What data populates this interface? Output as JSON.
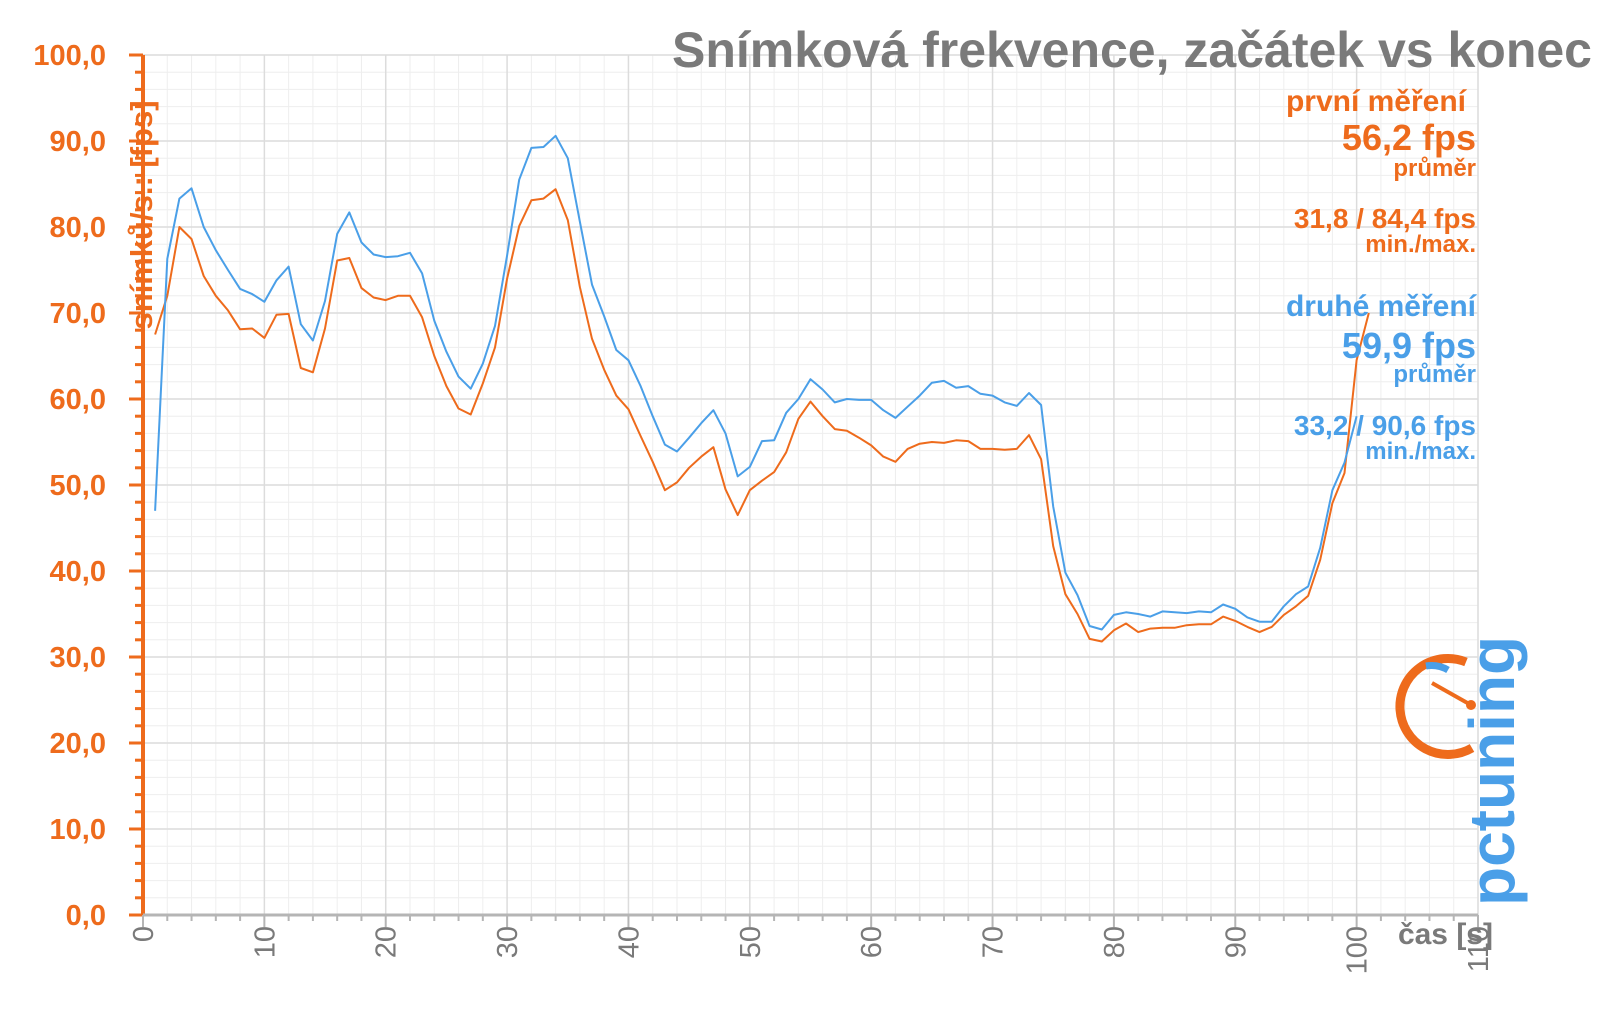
{
  "colors": {
    "series1": "#ee6b1c",
    "series2": "#4a9fe8",
    "axis": "#ee6b1c",
    "title": "#7a7a7a",
    "grid": "#dcdcdc",
    "grid_minor": "#eeeeee"
  },
  "chart_data": {
    "type": "line",
    "title": "Snímková frekvence, začátek vs konec",
    "ylabel": "snímků/s.: [fps]",
    "xlabel": "čas [s]",
    "xlim": [
      0,
      110
    ],
    "ylim": [
      0,
      100
    ],
    "x_ticks": [
      "0",
      "10",
      "20",
      "30",
      "40",
      "50",
      "60",
      "70",
      "80",
      "90",
      "100",
      "110"
    ],
    "y_ticks": [
      "0,0",
      "10,0",
      "20,0",
      "30,0",
      "40,0",
      "50,0",
      "60,0",
      "70,0",
      "80,0",
      "90,0",
      "100,0"
    ],
    "grid": true,
    "legend_position": "right",
    "series": [
      {
        "name": "první měření",
        "x": [
          1,
          2,
          3,
          4,
          5,
          6,
          7,
          8,
          9,
          10,
          11,
          12,
          13,
          14,
          15,
          16,
          17,
          18,
          19,
          20,
          21,
          22,
          23,
          24,
          25,
          26,
          27,
          28,
          29,
          30,
          31,
          32,
          33,
          34,
          35,
          36,
          37,
          38,
          39,
          40,
          41,
          42,
          43,
          44,
          45,
          46,
          47,
          48,
          49,
          50,
          51,
          52,
          53,
          54,
          55,
          56,
          57,
          58,
          59,
          60,
          61,
          62,
          63,
          64,
          65,
          66,
          67,
          68,
          69,
          70,
          71,
          72,
          73,
          74,
          75,
          76,
          77,
          78,
          79,
          80,
          81,
          82,
          83,
          84,
          85,
          86,
          87,
          88,
          89,
          90,
          91,
          92,
          93,
          94,
          95,
          96,
          97,
          98,
          99,
          100,
          101
        ],
        "values": [
          67.5,
          72,
          80,
          78.6,
          74.3,
          72,
          70.3,
          68.1,
          68.2,
          67.1,
          69.8,
          69.9,
          63.6,
          63.1,
          68.2,
          76.1,
          76.4,
          72.9,
          71.8,
          71.5,
          72,
          72,
          69.5,
          65,
          61.5,
          58.9,
          58.2,
          61.8,
          66,
          74,
          80.1,
          83.1,
          83.3,
          84.4,
          80.8,
          73,
          67,
          63.4,
          60.4,
          58.8,
          55.7,
          52.7,
          49.4,
          50.3,
          52,
          53.3,
          54.4,
          49.5,
          46.5,
          49.4,
          50.5,
          51.5,
          53.8,
          57.7,
          59.7,
          58,
          56.5,
          56.3,
          55.5,
          54.6,
          53.3,
          52.7,
          54.2,
          54.8,
          55,
          54.9,
          55.2,
          55.1,
          54.2,
          54.2,
          54.1,
          54.2,
          55.8,
          53,
          42.9,
          37.3,
          35,
          32.1,
          31.8,
          33.1,
          33.9,
          32.9,
          33.3,
          33.4,
          33.4,
          33.7,
          33.8,
          33.8,
          34.7,
          34.2,
          33.5,
          32.9,
          33.5,
          34.9,
          35.9,
          37.1,
          41.3,
          47.9,
          51.4,
          64.5,
          70
        ]
      },
      {
        "name": "druhé měření",
        "x": [
          1,
          2,
          3,
          4,
          5,
          6,
          7,
          8,
          9,
          10,
          11,
          12,
          13,
          14,
          15,
          16,
          17,
          18,
          19,
          20,
          21,
          22,
          23,
          24,
          25,
          26,
          27,
          28,
          29,
          30,
          31,
          32,
          33,
          34,
          35,
          36,
          37,
          38,
          39,
          40,
          41,
          42,
          43,
          44,
          45,
          46,
          47,
          48,
          49,
          50,
          51,
          52,
          53,
          54,
          55,
          56,
          57,
          58,
          59,
          60,
          61,
          62,
          63,
          64,
          65,
          66,
          67,
          68,
          69,
          70,
          71,
          72,
          73,
          74,
          75,
          76,
          77,
          78,
          79,
          80,
          81,
          82,
          83,
          84,
          85,
          86,
          87,
          88,
          89,
          90,
          91,
          92,
          93,
          94,
          95,
          96,
          97,
          98,
          99,
          100
        ],
        "values": [
          47,
          76.3,
          83.3,
          84.5,
          80,
          77.3,
          75,
          72.8,
          72.2,
          71.3,
          73.8,
          75.4,
          68.7,
          66.8,
          71.4,
          79.2,
          81.7,
          78.2,
          76.8,
          76.5,
          76.6,
          77,
          74.6,
          69.1,
          65.5,
          62.6,
          61.2,
          64.1,
          68.5,
          76.7,
          85.5,
          89.2,
          89.3,
          90.6,
          88,
          80.6,
          73.3,
          69.6,
          65.7,
          64.5,
          61.5,
          58,
          54.7,
          53.9,
          55.5,
          57.2,
          58.7,
          56,
          51,
          52.1,
          55.1,
          55.2,
          58.4,
          60,
          62.3,
          61.1,
          59.6,
          60,
          59.9,
          59.9,
          58.7,
          57.8,
          59.1,
          60.4,
          61.9,
          62.1,
          61.3,
          61.5,
          60.6,
          60.4,
          59.6,
          59.2,
          60.7,
          59.3,
          47.5,
          39.8,
          37.2,
          33.6,
          33.2,
          34.9,
          35.2,
          35,
          34.7,
          35.3,
          35.2,
          35.1,
          35.3,
          35.2,
          36.1,
          35.6,
          34.6,
          34.1,
          34.1,
          35.9,
          37.3,
          38.2,
          42.7,
          49.4,
          52.6,
          58
        ]
      }
    ],
    "stats": [
      {
        "name": "první měření",
        "avg": "56,2 fps",
        "avg_label": "průměr",
        "minmax": "31,8 / 84,4 fps",
        "minmax_label": "min./max."
      },
      {
        "name": "druhé měření",
        "avg": "59,9 fps",
        "avg_label": "průměr",
        "minmax": "33,2 / 90,6 fps",
        "minmax_label": "min./max."
      }
    ]
  },
  "logo": {
    "text": "pctuning",
    "icon": "speedometer-icon"
  }
}
